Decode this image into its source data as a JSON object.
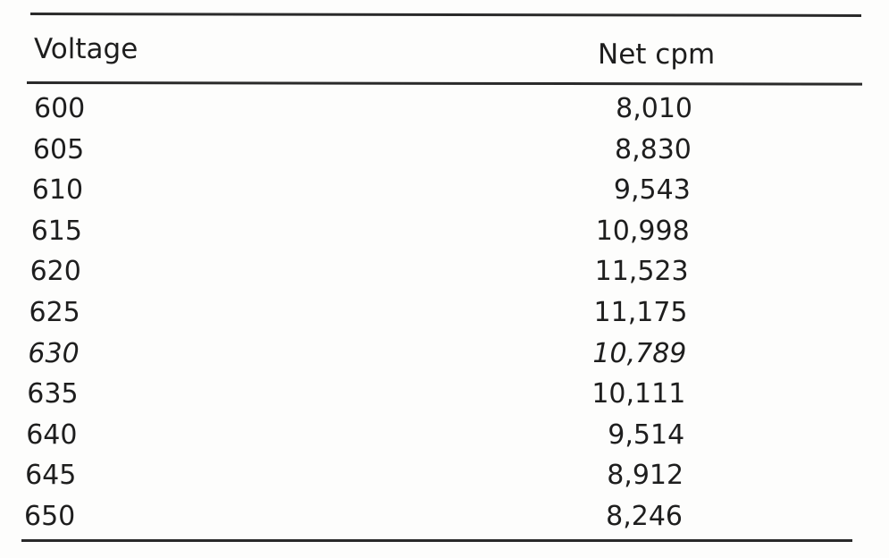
{
  "table": {
    "headers": {
      "voltage": "Voltage",
      "net_cpm": "Net cpm"
    },
    "rows": [
      {
        "voltage": "600",
        "net_cpm": "8,010",
        "italic": false
      },
      {
        "voltage": "605",
        "net_cpm": "8,830",
        "italic": false
      },
      {
        "voltage": "610",
        "net_cpm": "9,543",
        "italic": false
      },
      {
        "voltage": "615",
        "net_cpm": "10,998",
        "italic": false
      },
      {
        "voltage": "620",
        "net_cpm": "11,523",
        "italic": false
      },
      {
        "voltage": "625",
        "net_cpm": "11,175",
        "italic": false
      },
      {
        "voltage": "630",
        "net_cpm": "10,789",
        "italic": true
      },
      {
        "voltage": "635",
        "net_cpm": "10,111",
        "italic": false
      },
      {
        "voltage": "640",
        "net_cpm": "9,514",
        "italic": false
      },
      {
        "voltage": "645",
        "net_cpm": "8,912",
        "italic": false
      },
      {
        "voltage": "650",
        "net_cpm": "8,246",
        "italic": false
      }
    ]
  }
}
